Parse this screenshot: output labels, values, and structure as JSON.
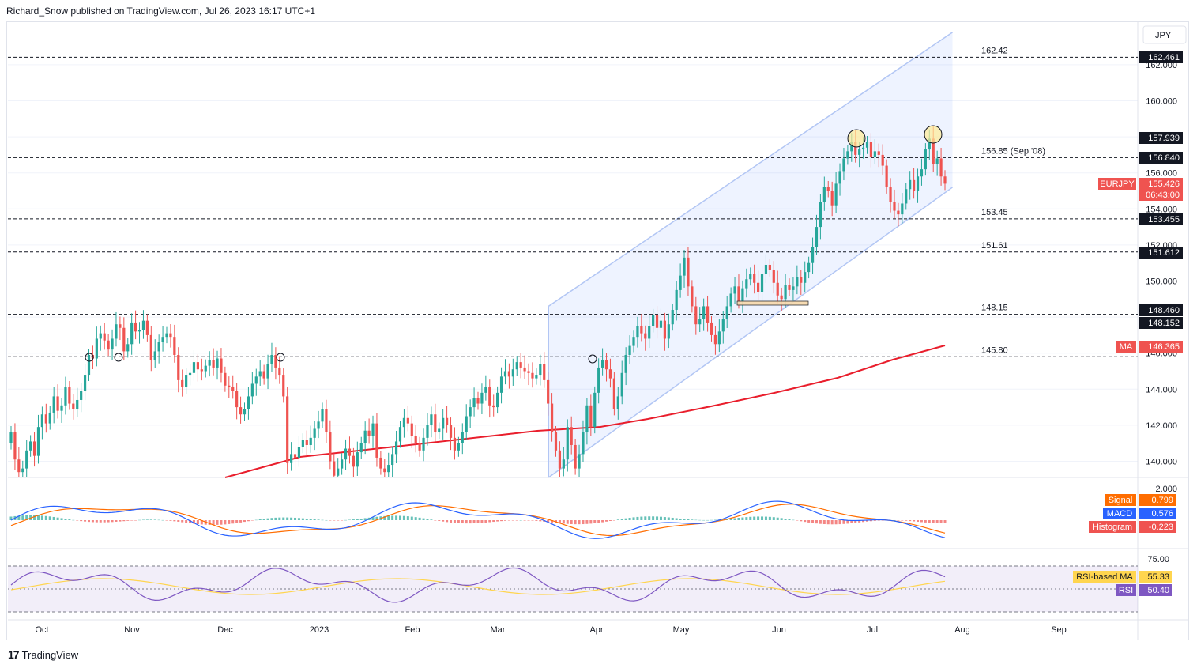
{
  "header": {
    "text": "Richard_Snow published on TradingView.com, Jul 26, 2023 16:17 UTC+1"
  },
  "footer": {
    "brand": "TradingView",
    "logo": "17"
  },
  "currency": "JPY",
  "colors": {
    "up": "#26a69a",
    "down": "#ef5350",
    "ma": "#e91e2c",
    "channel": "#b2c6f4",
    "macd": "#2962ff",
    "signal": "#ff6d00",
    "rsi": "#7e57c2",
    "rsi_ma": "#ffd54f"
  },
  "price_scale": {
    "ticks": [
      "162.000",
      "160.000",
      "156.000",
      "154.000",
      "152.000",
      "150.000",
      "146.000",
      "144.000",
      "142.000",
      "140.000"
    ]
  },
  "level_labels": [
    "162.42",
    "156.85 (Sep '08)",
    "153.45",
    "151.61",
    "148.15",
    "145.80"
  ],
  "price_tags": [
    {
      "text": "162.461",
      "style": "dark"
    },
    {
      "text": "157.939",
      "style": "dark"
    },
    {
      "text": "156.840",
      "style": "dark"
    },
    {
      "text": "155.426",
      "style": "red"
    },
    {
      "text": "06:43:00",
      "style": "redlight"
    },
    {
      "text": "153.455",
      "style": "dark"
    },
    {
      "text": "151.612",
      "style": "dark"
    },
    {
      "text": "148.460",
      "style": "dark"
    },
    {
      "text": "148.152",
      "style": "dark"
    },
    {
      "text": "146.365",
      "style": "red"
    }
  ],
  "symbol_tag": "EURJPY",
  "ma_tag": "MA",
  "macd_panel": {
    "ticks": [
      "2.000"
    ],
    "legend": [
      {
        "name": "Signal",
        "value": "0.799"
      },
      {
        "name": "MACD",
        "value": "0.576"
      },
      {
        "name": "Histogram",
        "value": "-0.223"
      }
    ]
  },
  "rsi_panel": {
    "ticks": [
      "75.00"
    ],
    "legend": [
      {
        "name": "RSI-based MA",
        "value": "55.33"
      },
      {
        "name": "RSI",
        "value": "50.40"
      }
    ]
  },
  "time_axis": [
    "Oct",
    "Nov",
    "Dec",
    "2023",
    "Feb",
    "Mar",
    "Apr",
    "May",
    "Jun",
    "Jul",
    "Aug",
    "Sep"
  ],
  "chart_data": {
    "type": "candlestick",
    "title": "EURJPY",
    "x_range": [
      "2022-09-23",
      "2023-09-30"
    ],
    "ylim": [
      139.0,
      163.8
    ],
    "horizontal_levels": [
      162.42,
      156.85,
      153.45,
      151.61,
      148.15,
      145.8
    ],
    "channel": {
      "upper": [
        [
          "2023-03-20",
          148.6
        ],
        [
          "2023-07-31",
          163.8
        ]
      ],
      "lower": [
        [
          "2023-03-20",
          139.1
        ],
        [
          "2023-07-31",
          155.2
        ]
      ]
    },
    "candles_close": [
      141.6,
      140.1,
      139.4,
      139.6,
      140.6,
      141.1,
      140.3,
      141.9,
      142.6,
      142.1,
      142.7,
      143.6,
      142.8,
      143.1,
      144.1,
      143.2,
      142.9,
      143.4,
      143.9,
      144.8,
      145.9,
      145.7,
      146.8,
      147.1,
      146.7,
      146.2,
      146.8,
      147.6,
      147.4,
      146.1,
      146.5,
      147.7,
      147.2,
      147.3,
      147.8,
      147.0,
      145.6,
      146.1,
      146.6,
      146.9,
      147.1,
      146.9,
      145.9,
      144.5,
      144.1,
      144.8,
      144.9,
      145.5,
      145.1,
      145.0,
      145.3,
      145.6,
      145.2,
      145.7,
      144.9,
      144.2,
      144.1,
      143.9,
      143.0,
      142.6,
      142.9,
      143.6,
      144.3,
      144.7,
      145.0,
      144.6,
      145.4,
      145.9,
      145.2,
      144.8,
      143.6,
      139.9,
      140.4,
      140.2,
      140.8,
      141.2,
      140.9,
      141.3,
      141.8,
      142.2,
      142.9,
      141.6,
      140.0,
      139.2,
      139.6,
      140.1,
      140.7,
      140.3,
      139.7,
      140.5,
      141.0,
      141.7,
      141.4,
      142.1,
      140.2,
      139.6,
      139.4,
      139.8,
      140.4,
      141.1,
      141.9,
      142.4,
      142.1,
      141.4,
      141.0,
      140.6,
      141.3,
      142.0,
      142.6,
      141.6,
      141.8,
      142.4,
      142.0,
      141.3,
      140.6,
      141.0,
      141.6,
      142.5,
      143.0,
      143.5,
      143.2,
      143.8,
      144.1,
      143.1,
      143.0,
      143.8,
      144.7,
      145.0,
      144.7,
      145.1,
      145.5,
      145.2,
      145.0,
      144.9,
      144.6,
      144.8,
      145.4,
      144.5,
      143.2,
      141.6,
      140.6,
      139.6,
      140.1,
      141.9,
      140.9,
      139.6,
      140.4,
      141.6,
      143.1,
      141.9,
      143.8,
      145.2,
      145.6,
      145.1,
      144.6,
      142.9,
      143.6,
      144.9,
      145.9,
      146.4,
      146.9,
      147.5,
      147.1,
      146.8,
      147.5,
      148.1,
      147.4,
      147.8,
      146.8,
      147.6,
      148.4,
      149.5,
      150.3,
      151.3,
      149.7,
      148.6,
      147.6,
      147.9,
      148.6,
      147.7,
      147.0,
      146.5,
      147.2,
      147.9,
      148.6,
      149.3,
      149.7,
      148.9,
      149.6,
      150.1,
      150.4,
      149.9,
      149.4,
      150.4,
      150.9,
      150.6,
      149.9,
      149.2,
      149.0,
      149.8,
      149.5,
      149.7,
      150.2,
      149.9,
      150.5,
      151.0,
      151.9,
      153.0,
      154.4,
      155.2,
      155.0,
      154.2,
      155.4,
      156.1,
      156.8,
      157.2,
      157.7,
      157.0,
      157.3,
      157.4,
      157.7,
      156.9,
      157.2,
      157.0,
      156.4,
      155.2,
      154.4,
      153.9,
      153.7,
      154.3,
      155.1,
      155.6,
      155.0,
      155.8,
      156.2,
      157.3,
      157.9,
      156.5,
      156.8,
      155.8,
      155.4
    ]
  }
}
